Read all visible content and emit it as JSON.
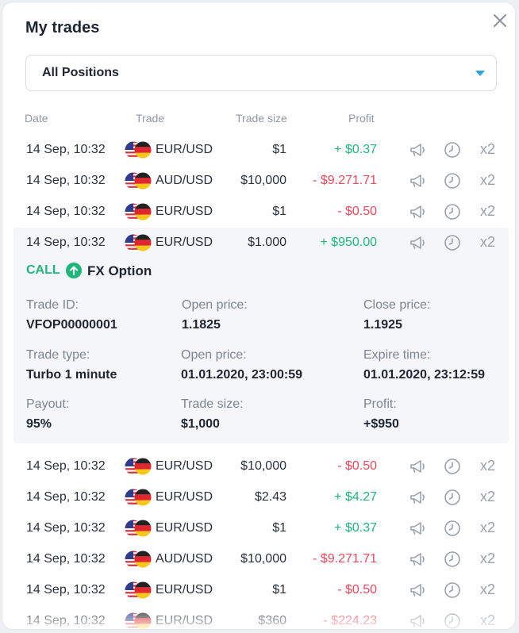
{
  "header": {
    "title": "My trades"
  },
  "filter": {
    "selected": "All Positions"
  },
  "columns": {
    "date": "Date",
    "trade": "Trade",
    "size": "Trade size",
    "profit": "Profit"
  },
  "rows_top": [
    {
      "date": "14 Sep, 10:32",
      "pair": "EUR/USD",
      "size": "$1",
      "profit": "+ $0.37",
      "direction": "pos",
      "mult": "x2"
    },
    {
      "date": "14 Sep, 10:32",
      "pair": "AUD/USD",
      "size": "$10,000",
      "profit": "- $9.271.71",
      "direction": "neg",
      "mult": "x2"
    },
    {
      "date": "14 Sep, 10:32",
      "pair": "EUR/USD",
      "size": "$1",
      "profit": "- $0.50",
      "direction": "neg",
      "mult": "x2"
    },
    {
      "date": "14 Sep, 10:32",
      "pair": "EUR/USD",
      "size": "$1.000",
      "profit": "+ $950.00",
      "direction": "pos",
      "mult": "x2"
    }
  ],
  "details": {
    "call_label": "CALL",
    "option_label": "FX Option",
    "trade_id_label": "Trade ID:",
    "trade_id": "VFOP00000001",
    "open_price_label": "Open price:",
    "open_price": "1.1825",
    "close_price_label": "Close price:",
    "close_price": "1.1925",
    "trade_type_label": "Trade type:",
    "trade_type": "Turbo 1 minute",
    "open_time_label": "Open price:",
    "open_time": "01.01.2020, 23:00:59",
    "expire_label": "Expire time:",
    "expire": "01.01.2020, 23:12:59",
    "payout_label": "Payout:",
    "payout": "95%",
    "size_label": "Trade size:",
    "size": "$1,000",
    "profit_label": "Profit:",
    "profit": "+$950"
  },
  "rows_bottom": [
    {
      "date": "14 Sep, 10:32",
      "pair": "EUR/USD",
      "size": "$10,000",
      "profit": "- $0.50",
      "direction": "neg",
      "mult": "x2"
    },
    {
      "date": "14 Sep, 10:32",
      "pair": "EUR/USD",
      "size": "$2.43",
      "profit": "+ $4.27",
      "direction": "pos",
      "mult": "x2"
    },
    {
      "date": "14 Sep, 10:32",
      "pair": "EUR/USD",
      "size": "$1",
      "profit": "+ $0.37",
      "direction": "pos",
      "mult": "x2"
    },
    {
      "date": "14 Sep, 10:32",
      "pair": "AUD/USD",
      "size": "$10,000",
      "profit": "- $9.271.71",
      "direction": "neg",
      "mult": "x2"
    },
    {
      "date": "14 Sep, 10:32",
      "pair": "EUR/USD",
      "size": "$1",
      "profit": "- $0.50",
      "direction": "neg",
      "mult": "x2"
    },
    {
      "date": "14 Sep, 10:32",
      "pair": "EUR/USD",
      "size": "$360",
      "profit": "- $224.23",
      "direction": "neg",
      "mult": "x2"
    }
  ],
  "icons": {
    "close": "close-icon",
    "dropdown": "chevron-down-icon",
    "announce": "megaphone-icon",
    "history": "clock-icon",
    "up": "arrow-up-icon"
  },
  "colors": {
    "positive": "#1fb77a",
    "negative": "#f0475a",
    "accent": "#2ea3e0"
  }
}
